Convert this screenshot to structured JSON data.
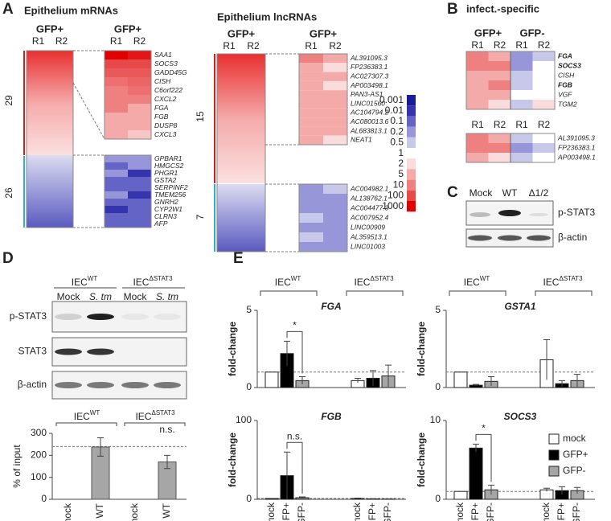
{
  "panel_labels": [
    "A",
    "B",
    "C",
    "D",
    "E"
  ],
  "heatmap_scale": {
    "ticks": [
      0.001,
      0.01,
      0.1,
      0.2,
      0.5,
      1,
      2,
      5,
      10,
      100,
      1000
    ],
    "colors": [
      "#1a1a9a",
      "#3434ae",
      "#6464c6",
      "#9696d8",
      "#c8c8ea",
      "#ffffff",
      "#fadcdc",
      "#f5aaaa",
      "#ef8080",
      "#e84848",
      "#e00000"
    ]
  },
  "panel_a": {
    "mrna": {
      "title": "Epithelium mRNAs",
      "overview_header": "GFP+",
      "zoom_header": "GFP+",
      "replicates": [
        "R1",
        "R2"
      ],
      "up_count": 29,
      "down_count": 26,
      "up": {
        "genes": [
          "SAA1",
          "SOCS3",
          "GADD45G",
          "CISH",
          "C6orf222",
          "CXCL2",
          "FGA",
          "FGB",
          "DUSP8",
          "CXCL3"
        ],
        "values": [
          [
            1000,
            500
          ],
          [
            100,
            100
          ],
          [
            50,
            50
          ],
          [
            20,
            30
          ],
          [
            10,
            20
          ],
          [
            10,
            10
          ],
          [
            10,
            5
          ],
          [
            5,
            5
          ],
          [
            5,
            5
          ],
          [
            5,
            3
          ]
        ]
      },
      "down": {
        "genes": [
          "GPBAR1",
          "HMGCS2",
          "PHGR1",
          "GSTA2",
          "SERPINF2",
          "TMEM256",
          "GNRH2",
          "CYP2W1",
          "CLRN3",
          "AFP"
        ],
        "values": [
          [
            0.2,
            0.2
          ],
          [
            0.1,
            0.2
          ],
          [
            0.2,
            0.01
          ],
          [
            0.1,
            0.1
          ],
          [
            0.1,
            0.1
          ],
          [
            0.2,
            0.01
          ],
          [
            0.1,
            0.1
          ],
          [
            0.01,
            0.1
          ],
          [
            0.1,
            0.1
          ],
          [
            0.1,
            0.1
          ]
        ]
      }
    },
    "lncrna": {
      "title": "Epithelium lncRNAs",
      "overview_header": "GFP+",
      "zoom_header": "GFP+",
      "replicates": [
        "R1",
        "R2"
      ],
      "up_count": 15,
      "down_count": 7,
      "up": {
        "genes": [
          "AL391095.3",
          "FP236383.1",
          "AC027307.3",
          "AP003498.1",
          "PAN3-AS1",
          "LINC01560",
          "AC104794.2",
          "AC080013.6",
          "AL683813.1",
          "NEAT1"
        ],
        "values": [
          [
            10,
            5
          ],
          [
            5,
            2
          ],
          [
            5,
            5
          ],
          [
            5,
            2
          ],
          [
            5,
            5
          ],
          [
            5,
            5
          ],
          [
            5,
            5
          ],
          [
            5,
            5
          ],
          [
            5,
            5
          ],
          [
            5,
            2
          ]
        ]
      },
      "down": {
        "genes": [
          "AC004982.1",
          "AL138762.1",
          "AC004477.3",
          "AC007952.4",
          "LINC00909",
          "AL359513.1",
          "LINC01003"
        ],
        "values": [
          [
            0.2,
            0.5
          ],
          [
            0.2,
            0.2
          ],
          [
            0.2,
            0.2
          ],
          [
            0.5,
            0.2
          ],
          [
            0.2,
            0.2
          ],
          [
            0.5,
            0.2
          ],
          [
            0.2,
            0.2
          ]
        ]
      }
    }
  },
  "panel_b": {
    "title": "infect.-specific",
    "groups": [
      "GFP+",
      "GFP-"
    ],
    "replicates": [
      "R1",
      "R2"
    ],
    "mrna": {
      "genes": [
        "FGA",
        "SOCS3",
        "CISH",
        "FGB",
        "VGF",
        "TGM2"
      ],
      "bold": [
        true,
        true,
        false,
        true,
        false,
        false
      ],
      "values": [
        [
          10,
          5,
          0.2,
          0.5
        ],
        [
          10,
          10,
          0.2,
          1
        ],
        [
          5,
          5,
          0.5,
          1
        ],
        [
          5,
          10,
          0.5,
          1
        ],
        [
          5,
          5,
          1,
          1
        ],
        [
          5,
          2,
          0.5,
          2
        ]
      ]
    },
    "lncrna": {
      "genes": [
        "AL391095.3",
        "FP236383.1",
        "AP003498.1"
      ],
      "values": [
        [
          10,
          5,
          0.5,
          1
        ],
        [
          10,
          10,
          0.2,
          0.5
        ],
        [
          5,
          2,
          0.5,
          1
        ]
      ]
    }
  },
  "panel_c": {
    "lanes": [
      "Mock",
      "WT",
      "Δ1/2"
    ],
    "bands": [
      "p-STAT3",
      "β-actin"
    ]
  },
  "panel_d": {
    "groups": [
      {
        "base": "IEC",
        "sup": "WT"
      },
      {
        "base": "IEC",
        "sup": "ΔSTAT3"
      }
    ],
    "lanes": [
      "Mock",
      "S. tm",
      "Mock",
      "S. tm"
    ],
    "bands": [
      "p-STAT3",
      "STAT3",
      "β-actin"
    ],
    "chart_data": {
      "type": "bar",
      "ylabel": "% of input",
      "categories": [
        "mock",
        "WT",
        "mock",
        "WT"
      ],
      "values": [
        0,
        238,
        0,
        170
      ],
      "errors": [
        0,
        42,
        0,
        30
      ],
      "ylim": [
        0,
        300
      ],
      "yticks": [
        0,
        100,
        200,
        300
      ],
      "reference_line": 240,
      "annotation": "n.s.",
      "color": "#a6a6a6"
    }
  },
  "panel_e": {
    "groups": [
      {
        "base": "IEC",
        "sup": "WT"
      },
      {
        "base": "IEC",
        "sup": "ΔSTAT3"
      }
    ],
    "categories": [
      "mock",
      "GFP+",
      "GFP-"
    ],
    "legend": [
      {
        "name": "mock",
        "color": "#ffffff"
      },
      {
        "name": "GFP+",
        "color": "#000000"
      },
      {
        "name": "GFP-",
        "color": "#a6a6a6"
      }
    ],
    "charts": [
      {
        "type": "bar",
        "title": "FGA",
        "ylabel": "fold-change",
        "values": [
          [
            1,
            2.2,
            0.45
          ],
          [
            0.45,
            0.6,
            0.75
          ]
        ],
        "errors": [
          [
            0,
            0.8,
            0.25
          ],
          [
            0.15,
            0.5,
            0.7
          ]
        ],
        "ylim": [
          0,
          5
        ],
        "yticks": [
          0,
          5
        ],
        "reference_line": 1,
        "significance": "*"
      },
      {
        "type": "bar",
        "title": "GSTA1",
        "ylabel": "fold-change",
        "values": [
          [
            1,
            0.15,
            0.4
          ],
          [
            1.8,
            0.25,
            0.45
          ]
        ],
        "errors": [
          [
            0,
            0.05,
            0.3
          ],
          [
            1.3,
            0.2,
            0.4
          ]
        ],
        "ylim": [
          0,
          5
        ],
        "yticks": [
          0,
          5
        ],
        "reference_line": 1
      },
      {
        "type": "bar",
        "title": "FGB",
        "ylabel": "fold-change",
        "values": [
          [
            1,
            30,
            2
          ],
          [
            1,
            0.5,
            0.3
          ]
        ],
        "errors": [
          [
            0,
            30,
            1
          ],
          [
            0.5,
            0.3,
            0.2
          ]
        ],
        "ylim": [
          0,
          100
        ],
        "yticks": [
          0,
          100
        ],
        "reference_line": 1,
        "significance": "n.s."
      },
      {
        "type": "bar",
        "title": "SOCS3",
        "ylabel": "fold-change",
        "values": [
          [
            1,
            6.5,
            1.2
          ],
          [
            1.2,
            1.1,
            1.1
          ]
        ],
        "errors": [
          [
            0,
            0.5,
            0.6
          ],
          [
            0.2,
            0.5,
            0.4
          ]
        ],
        "ylim": [
          0,
          10
        ],
        "yticks": [
          0,
          10
        ],
        "reference_line": 1,
        "significance": "*"
      }
    ]
  }
}
